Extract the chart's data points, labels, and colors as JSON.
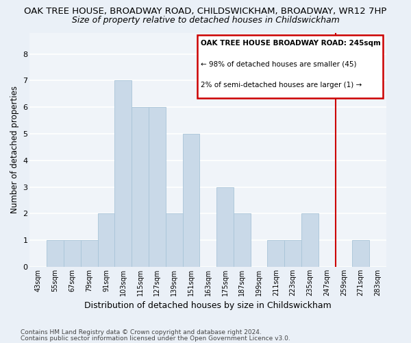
{
  "title": "OAK TREE HOUSE, BROADWAY ROAD, CHILDSWICKHAM, BROADWAY, WR12 7HP",
  "subtitle": "Size of property relative to detached houses in Childswickham",
  "xlabel": "Distribution of detached houses by size in Childswickham",
  "ylabel": "Number of detached properties",
  "bar_labels": [
    "43sqm",
    "55sqm",
    "67sqm",
    "79sqm",
    "91sqm",
    "103sqm",
    "115sqm",
    "127sqm",
    "139sqm",
    "151sqm",
    "163sqm",
    "175sqm",
    "187sqm",
    "199sqm",
    "211sqm",
    "223sqm",
    "235sqm",
    "247sqm",
    "259sqm",
    "271sqm",
    "283sqm"
  ],
  "bar_values": [
    0,
    1,
    1,
    1,
    2,
    7,
    6,
    6,
    2,
    5,
    0,
    3,
    2,
    0,
    1,
    1,
    2,
    0,
    0,
    1,
    0
  ],
  "bar_color": "#c9d9e8",
  "bar_edgecolor": "#a8c4d8",
  "vline_x_index": 17,
  "vline_color": "#cc0000",
  "annotation_title": "OAK TREE HOUSE BROADWAY ROAD: 245sqm",
  "annotation_line1": "← 98% of detached houses are smaller (45)",
  "annotation_line2": "2% of semi-detached houses are larger (1) →",
  "annotation_box_color": "#cc0000",
  "ylim": [
    0,
    8.8
  ],
  "yticks": [
    0,
    1,
    2,
    3,
    4,
    5,
    6,
    7,
    8
  ],
  "footnote1": "Contains HM Land Registry data © Crown copyright and database right 2024.",
  "footnote2": "Contains public sector information licensed under the Open Government Licence v3.0.",
  "bg_color": "#eaf0f7",
  "plot_bg_color": "#f0f4f9",
  "grid_color": "#ffffff",
  "title_fontsize": 9.5,
  "subtitle_fontsize": 9,
  "xlabel_fontsize": 9,
  "ylabel_fontsize": 8.5,
  "footnote_fontsize": 6.5
}
